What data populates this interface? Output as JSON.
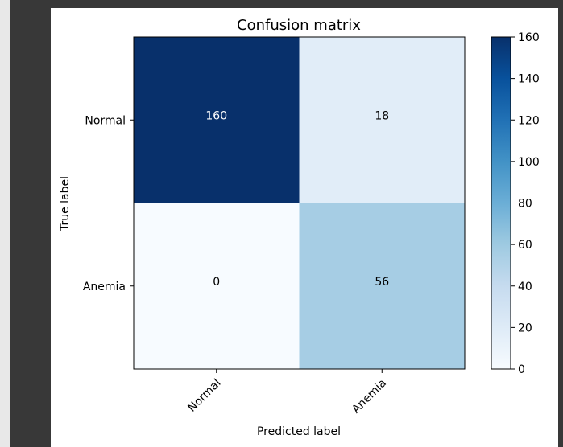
{
  "chart_data": {
    "type": "heatmap",
    "title": "Confusion matrix",
    "xlabel": "Predicted label",
    "ylabel": "True label",
    "x_categories": [
      "Normal",
      "Anemia"
    ],
    "y_categories": [
      "Normal",
      "Anemia"
    ],
    "values": [
      [
        160,
        18
      ],
      [
        0,
        56
      ]
    ],
    "colorbar": {
      "min": 0,
      "max": 160,
      "ticks": [
        0,
        20,
        40,
        60,
        80,
        100,
        120,
        140,
        160
      ],
      "colormap": "Blues"
    },
    "grid": false
  }
}
